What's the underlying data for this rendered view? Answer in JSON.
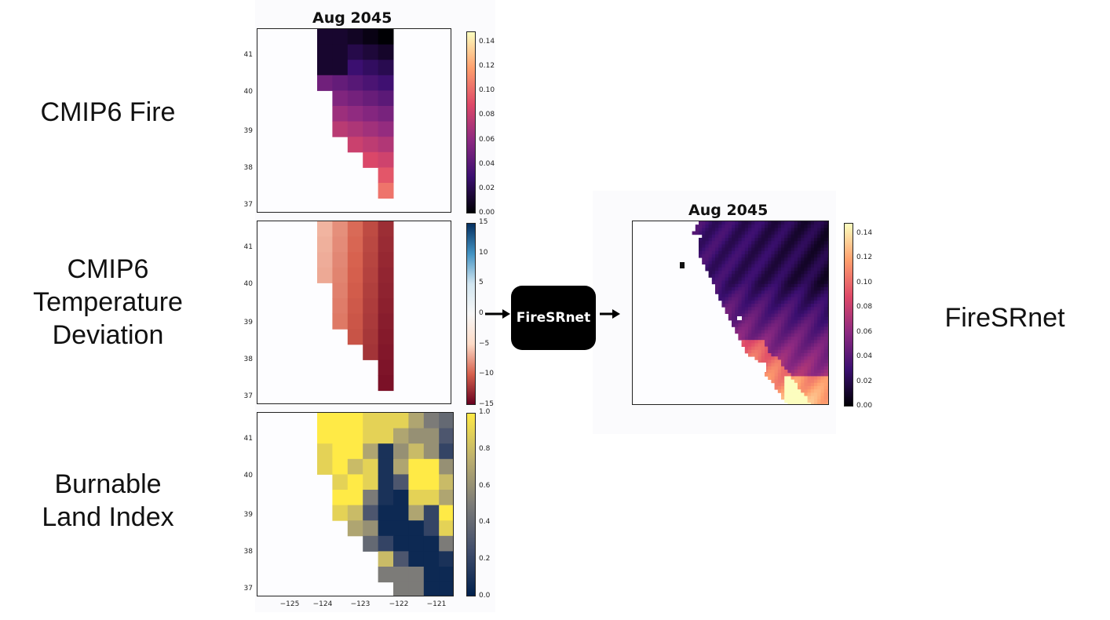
{
  "labels": {
    "fire": "CMIP6 Fire",
    "temperature": "CMIP6\nTemperature\nDeviation",
    "burnable": "Burnable\nLand Index",
    "output": "FireSRnet"
  },
  "model": {
    "name": "FireSRnet"
  },
  "input_panel": {
    "title": "Aug 2045",
    "y_ticks": [
      "41",
      "40",
      "39",
      "38",
      "37"
    ],
    "x_ticks": [
      "−125",
      "−124",
      "−123",
      "−122",
      "−121"
    ]
  },
  "output_panel": {
    "title": "Aug 2045"
  },
  "colorbars": {
    "fire": {
      "ticks": [
        "0.14",
        "0.12",
        "0.10",
        "0.08",
        "0.06",
        "0.04",
        "0.02",
        "0.00"
      ],
      "colors": [
        "#000004",
        "#3b0f70",
        "#8c2981",
        "#de4968",
        "#fe9f6d",
        "#fcfdbf"
      ]
    },
    "temperature": {
      "ticks": [
        "15",
        "10",
        "5",
        "0",
        "−5",
        "−10",
        "−15"
      ],
      "colors": [
        "#67001f",
        "#d6604d",
        "#fddbc7",
        "#f7f7f7",
        "#d1e5f0",
        "#4393c3",
        "#053061"
      ]
    },
    "burnable": {
      "ticks": [
        "1.0",
        "0.8",
        "0.6",
        "0.4",
        "0.2",
        "0.0"
      ],
      "colors": [
        "#00204d",
        "#414d6b",
        "#7c7b78",
        "#bcaf6f",
        "#ffea46"
      ]
    },
    "output": {
      "ticks": [
        "0.14",
        "0.12",
        "0.10",
        "0.08",
        "0.06",
        "0.04",
        "0.02",
        "0.00"
      ],
      "colors": [
        "#000004",
        "#3b0f70",
        "#8c2981",
        "#de4968",
        "#fe9f6d",
        "#fcfdbf"
      ]
    }
  }
}
